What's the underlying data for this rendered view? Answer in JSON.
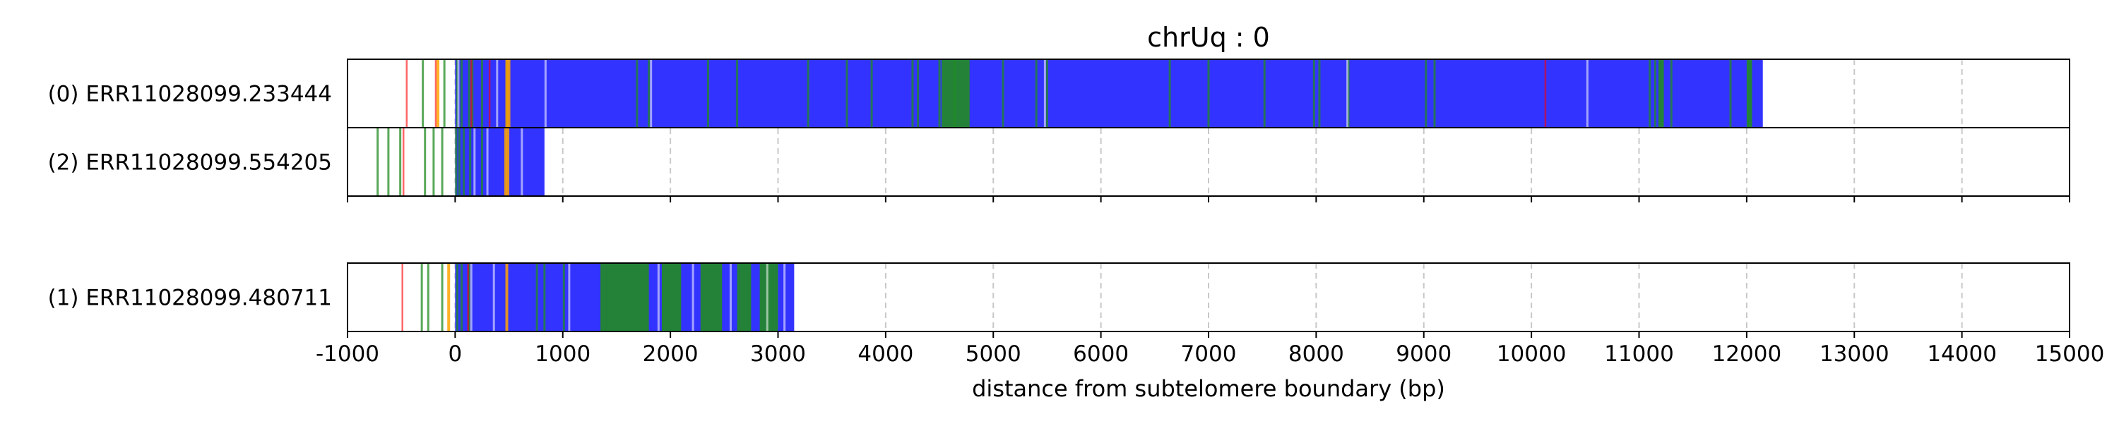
{
  "chart_data": {
    "type": "bar",
    "title": "chrUq : 0",
    "xlabel": "distance from subtelomere boundary (bp)",
    "ylabel": "",
    "xlim": [
      -1000,
      15000
    ],
    "xticks": [
      -1000,
      0,
      1000,
      2000,
      3000,
      4000,
      5000,
      6000,
      7000,
      8000,
      9000,
      10000,
      11000,
      12000,
      13000,
      14000,
      15000
    ],
    "grid": "vertical dashed",
    "colors": {
      "telomeric_repeat": "#3333ff",
      "other_repeat": "#228b22",
      "mismatch": "#ff0000",
      "insertion": "#ffa500",
      "grid": "#c8c8c8",
      "frame": "#000000"
    },
    "groups": [
      {
        "reads": [
          {
            "label": "(0) ERR11028099.233444",
            "start": -1000,
            "end": 12150,
            "blue_spans": [
              [
                0,
                12150
              ]
            ],
            "green_ticks": [
              -300,
              -100,
              20,
              60,
              130,
              160,
              250,
              480,
              1690,
              1800,
              2350,
              2620,
              3280,
              3640,
              3870,
              4250,
              4300,
              4500,
              4640,
              5090,
              5400,
              5500,
              6640,
              7000,
              7520,
              7980,
              8030,
              8300,
              9020,
              9100,
              11100,
              11150,
              11300,
              11850
            ],
            "green_spans": [
              [
                4520,
                4780
              ],
              [
                11180,
                11230
              ],
              [
                12000,
                12050
              ]
            ],
            "red_ticks": [
              -450,
              -180,
              150,
              320,
              10130
            ],
            "orange_ticks": [
              -160,
              480,
              500
            ],
            "white_ticks": [
              30,
              390,
              840,
              1820,
              5480,
              8290,
              10520
            ]
          },
          {
            "label": "(2) ERR11028099.554205",
            "start": -1000,
            "end": 830,
            "blue_spans": [
              [
                0,
                830
              ]
            ],
            "green_ticks": [
              -720,
              -620,
              -510,
              -280,
              -200,
              -120,
              10,
              40,
              80,
              140,
              250
            ],
            "green_spans": [],
            "red_ticks": [
              -480
            ],
            "orange_ticks": [
              470,
              490
            ],
            "white_ticks": [
              180,
              300,
              620
            ]
          }
        ]
      },
      {
        "reads": [
          {
            "label": "(1) ERR11028099.480711",
            "start": -1000,
            "end": 3150,
            "blue_spans": [
              [
                0,
                3150
              ]
            ],
            "green_ticks": [
              -310,
              -250,
              -120,
              20,
              60,
              130,
              760,
              830,
              1010
            ],
            "green_spans": [
              [
                1350,
                1800
              ],
              [
                1920,
                2100
              ],
              [
                2280,
                2480
              ],
              [
                2620,
                2750
              ],
              [
                2830,
                3000
              ]
            ],
            "red_ticks": [
              -490,
              120
            ],
            "orange_ticks": [
              -60,
              480
            ],
            "white_ticks": [
              150,
              360,
              1060,
              1890,
              2210,
              2560,
              2900,
              3060
            ]
          }
        ]
      }
    ]
  }
}
